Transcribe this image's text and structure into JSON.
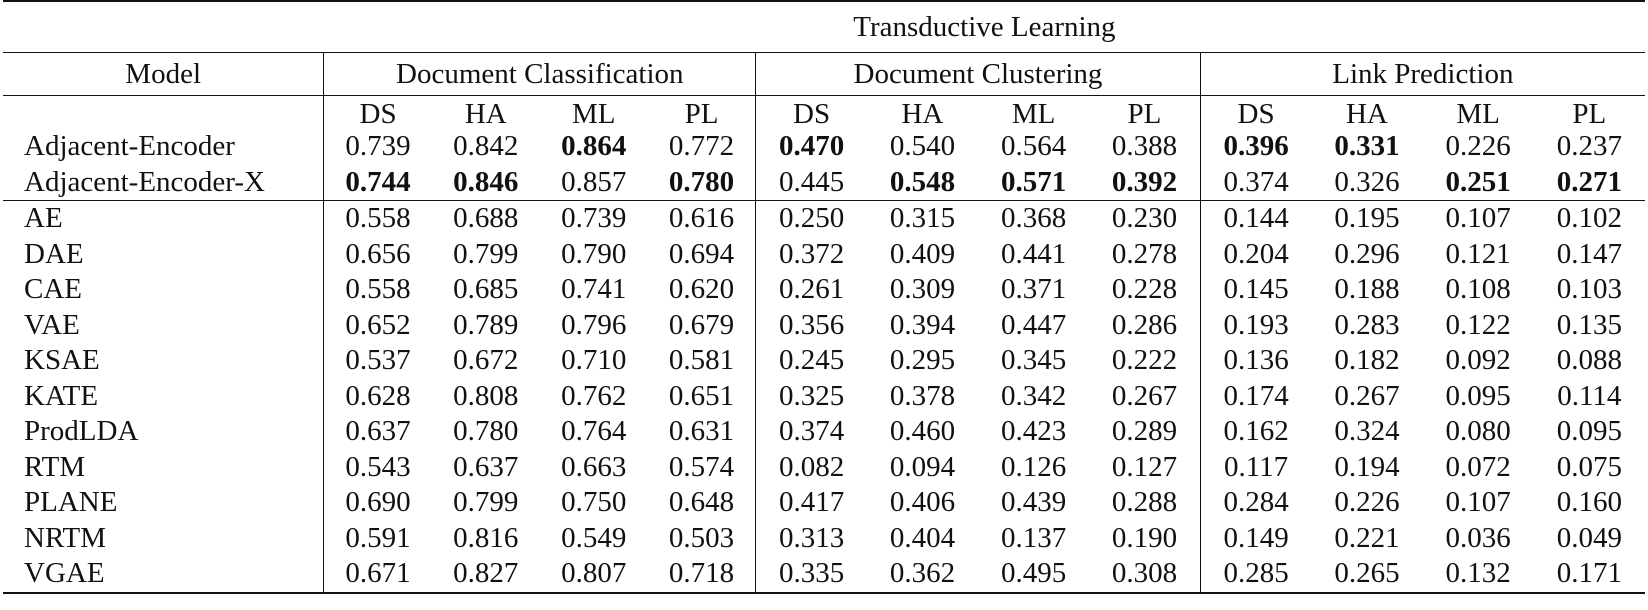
{
  "table": {
    "title": "Transductive Learning",
    "model_header": "Model",
    "groups": [
      {
        "label": "Document Classification",
        "metrics": [
          "DS",
          "HA",
          "ML",
          "PL"
        ]
      },
      {
        "label": "Document Clustering",
        "metrics": [
          "DS",
          "HA",
          "ML",
          "PL"
        ]
      },
      {
        "label": "Link Prediction",
        "metrics": [
          "DS",
          "HA",
          "ML",
          "PL"
        ]
      }
    ],
    "proposed_rows": [
      {
        "model": "Adjacent-Encoder",
        "values": [
          "0.739",
          "0.842",
          "0.864",
          "0.772",
          "0.470",
          "0.540",
          "0.564",
          "0.388",
          "0.396",
          "0.331",
          "0.226",
          "0.237"
        ],
        "bold": [
          false,
          false,
          true,
          false,
          true,
          false,
          false,
          false,
          true,
          true,
          false,
          false
        ]
      },
      {
        "model": "Adjacent-Encoder-X",
        "values": [
          "0.744",
          "0.846",
          "0.857",
          "0.780",
          "0.445",
          "0.548",
          "0.571",
          "0.392",
          "0.374",
          "0.326",
          "0.251",
          "0.271"
        ],
        "bold": [
          true,
          true,
          false,
          true,
          false,
          true,
          true,
          true,
          false,
          false,
          true,
          true
        ]
      }
    ],
    "baseline_rows": [
      {
        "model": "AE",
        "values": [
          "0.558",
          "0.688",
          "0.739",
          "0.616",
          "0.250",
          "0.315",
          "0.368",
          "0.230",
          "0.144",
          "0.195",
          "0.107",
          "0.102"
        ]
      },
      {
        "model": "DAE",
        "values": [
          "0.656",
          "0.799",
          "0.790",
          "0.694",
          "0.372",
          "0.409",
          "0.441",
          "0.278",
          "0.204",
          "0.296",
          "0.121",
          "0.147"
        ]
      },
      {
        "model": "CAE",
        "values": [
          "0.558",
          "0.685",
          "0.741",
          "0.620",
          "0.261",
          "0.309",
          "0.371",
          "0.228",
          "0.145",
          "0.188",
          "0.108",
          "0.103"
        ]
      },
      {
        "model": "VAE",
        "values": [
          "0.652",
          "0.789",
          "0.796",
          "0.679",
          "0.356",
          "0.394",
          "0.447",
          "0.286",
          "0.193",
          "0.283",
          "0.122",
          "0.135"
        ]
      },
      {
        "model": "KSAE",
        "values": [
          "0.537",
          "0.672",
          "0.710",
          "0.581",
          "0.245",
          "0.295",
          "0.345",
          "0.222",
          "0.136",
          "0.182",
          "0.092",
          "0.088"
        ]
      },
      {
        "model": "KATE",
        "values": [
          "0.628",
          "0.808",
          "0.762",
          "0.651",
          "0.325",
          "0.378",
          "0.342",
          "0.267",
          "0.174",
          "0.267",
          "0.095",
          "0.114"
        ]
      },
      {
        "model": "ProdLDA",
        "values": [
          "0.637",
          "0.780",
          "0.764",
          "0.631",
          "0.374",
          "0.460",
          "0.423",
          "0.289",
          "0.162",
          "0.324",
          "0.080",
          "0.095"
        ]
      },
      {
        "model": "RTM",
        "values": [
          "0.543",
          "0.637",
          "0.663",
          "0.574",
          "0.082",
          "0.094",
          "0.126",
          "0.127",
          "0.117",
          "0.194",
          "0.072",
          "0.075"
        ]
      },
      {
        "model": "PLANE",
        "values": [
          "0.690",
          "0.799",
          "0.750",
          "0.648",
          "0.417",
          "0.406",
          "0.439",
          "0.288",
          "0.284",
          "0.226",
          "0.107",
          "0.160"
        ]
      },
      {
        "model": "NRTM",
        "values": [
          "0.591",
          "0.816",
          "0.549",
          "0.503",
          "0.313",
          "0.404",
          "0.137",
          "0.190",
          "0.149",
          "0.221",
          "0.036",
          "0.049"
        ]
      },
      {
        "model": "VGAE",
        "values": [
          "0.671",
          "0.827",
          "0.807",
          "0.718",
          "0.335",
          "0.362",
          "0.495",
          "0.308",
          "0.285",
          "0.265",
          "0.132",
          "0.171"
        ]
      }
    ]
  }
}
